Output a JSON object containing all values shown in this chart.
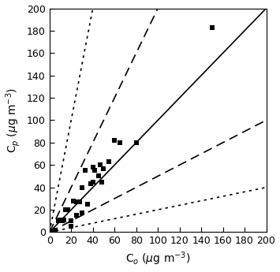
{
  "scatter_x": [
    3,
    5,
    8,
    10,
    12,
    13,
    15,
    17,
    20,
    20,
    22,
    25,
    25,
    28,
    30,
    30,
    33,
    35,
    38,
    40,
    40,
    42,
    45,
    47,
    48,
    50,
    55,
    60,
    65,
    80,
    150
  ],
  "scatter_y": [
    1,
    2,
    10,
    11,
    10,
    11,
    20,
    20,
    5,
    10,
    28,
    15,
    27,
    27,
    17,
    40,
    55,
    25,
    43,
    45,
    58,
    55,
    50,
    60,
    45,
    57,
    63,
    82,
    80,
    80,
    183
  ],
  "xlim": [
    0,
    200
  ],
  "ylim": [
    0,
    200
  ],
  "xlabel": "C$_o$ ($\\mu$g m$^{-3}$)",
  "ylabel": "C$_p$ ($\\mu$g m$^{-3}$)",
  "line_color": "#000000",
  "line_lw": 1.2,
  "marker": "s",
  "marker_color": "black",
  "marker_size": 5,
  "tick_step": 20,
  "background_color": "#ffffff",
  "dash_pattern": [
    7,
    4
  ],
  "dot_pattern": [
    2,
    3
  ]
}
